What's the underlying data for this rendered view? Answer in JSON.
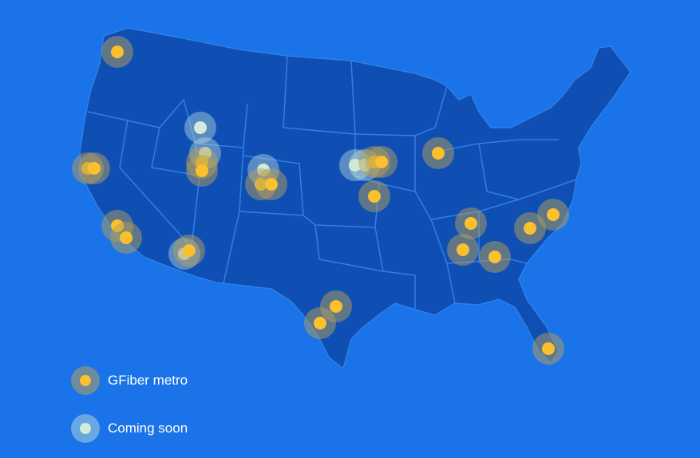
{
  "colors": {
    "background": "#1a73e8",
    "land": "#0f4fb4",
    "borders": "#2f7fe8",
    "metro": "#fbc02d",
    "coming_soon": "#d3ecd9"
  },
  "legend": [
    {
      "label": "GFiber metro",
      "type": "metro"
    },
    {
      "label": "Coming soon",
      "type": "coming_soon"
    }
  ],
  "markers": [
    {
      "type": "metro",
      "region": "Seattle, WA"
    },
    {
      "type": "metro",
      "region": "Bay Area, CA"
    },
    {
      "type": "metro",
      "region": "Bay Area, CA"
    },
    {
      "type": "metro",
      "region": "Los Angeles, CA"
    },
    {
      "type": "metro",
      "region": "Orange County, CA"
    },
    {
      "type": "coming_soon",
      "region": "Arizona"
    },
    {
      "type": "metro",
      "region": "Arizona"
    },
    {
      "type": "coming_soon",
      "region": "Idaho"
    },
    {
      "type": "coming_soon",
      "region": "Utah"
    },
    {
      "type": "metro",
      "region": "Utah"
    },
    {
      "type": "metro",
      "region": "Utah"
    },
    {
      "type": "coming_soon",
      "region": "Colorado"
    },
    {
      "type": "metro",
      "region": "Colorado"
    },
    {
      "type": "metro",
      "region": "Colorado"
    },
    {
      "type": "coming_soon",
      "region": "Nebraska"
    },
    {
      "type": "coming_soon",
      "region": "Nebraska"
    },
    {
      "type": "metro",
      "region": "Iowa"
    },
    {
      "type": "metro",
      "region": "Iowa"
    },
    {
      "type": "metro",
      "region": "Kansas City"
    },
    {
      "type": "metro",
      "region": "Chicago"
    },
    {
      "type": "metro",
      "region": "Nashville"
    },
    {
      "type": "metro",
      "region": "Huntsville"
    },
    {
      "type": "metro",
      "region": "Atlanta"
    },
    {
      "type": "metro",
      "region": "Charlotte"
    },
    {
      "type": "metro",
      "region": "Raleigh-Durham"
    },
    {
      "type": "metro",
      "region": "Austin"
    },
    {
      "type": "metro",
      "region": "San Antonio"
    },
    {
      "type": "metro",
      "region": "Miami"
    }
  ]
}
